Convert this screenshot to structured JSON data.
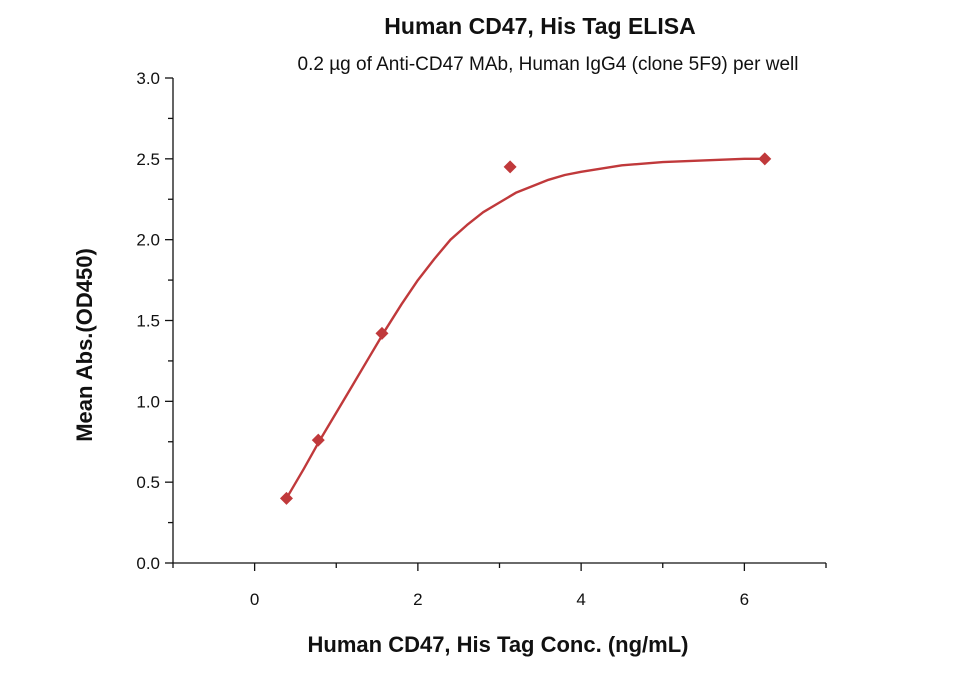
{
  "chart_data": {
    "type": "scatter",
    "title": "Human CD47, His Tag ELISA",
    "subtitle": "0.2 µg of Anti-CD47 MAb, Human IgG4 (clone 5F9) per well",
    "xlabel": "Human CD47, His Tag Conc. (ng/mL)",
    "ylabel": "Mean Abs.(OD450)",
    "xlim": [
      -1.0,
      7.0
    ],
    "ylim": [
      0.0,
      3.0
    ],
    "x_ticks": [
      0,
      2,
      4,
      6
    ],
    "y_ticks": [
      0.0,
      0.5,
      1.0,
      1.5,
      2.0,
      2.5,
      3.0
    ],
    "x_tick_labels": [
      "0",
      "2",
      "4",
      "6"
    ],
    "y_tick_labels": [
      "0.0",
      "0.5",
      "1.0",
      "1.5",
      "2.0",
      "2.5",
      "3.0"
    ],
    "grid": false,
    "marker": "diamond",
    "color": "#c0393b",
    "series": [
      {
        "x": [
          0.39,
          0.78,
          1.56,
          3.13,
          6.25
        ],
        "y": [
          0.4,
          0.76,
          1.42,
          2.45,
          2.5
        ]
      }
    ],
    "fit_curve": {
      "type": "sigmoidal",
      "x": [
        0.39,
        0.6,
        0.8,
        1.0,
        1.2,
        1.4,
        1.6,
        1.8,
        2.0,
        2.2,
        2.4,
        2.6,
        2.8,
        3.0,
        3.2,
        3.4,
        3.6,
        3.8,
        4.0,
        4.5,
        5.0,
        5.5,
        6.0,
        6.25
      ],
      "y": [
        0.4,
        0.58,
        0.76,
        0.93,
        1.1,
        1.27,
        1.44,
        1.6,
        1.75,
        1.88,
        2.0,
        2.09,
        2.17,
        2.23,
        2.29,
        2.33,
        2.37,
        2.4,
        2.42,
        2.46,
        2.48,
        2.49,
        2.5,
        2.5
      ]
    }
  }
}
